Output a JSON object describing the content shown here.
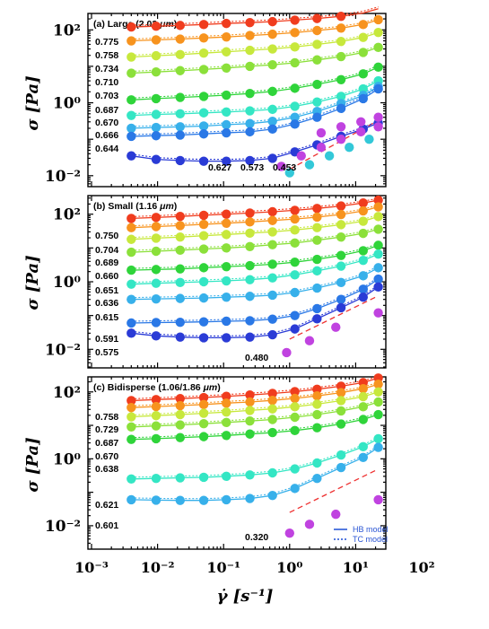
{
  "figure": {
    "ylabel": "σ [Pa]",
    "xlabel": "γ̇ [s⁻¹]"
  },
  "colors": {
    "0.775": "#f03c1e",
    "0.758": "#f7931e",
    "0.734": "#c7e83c",
    "0.710": "#8be03a",
    "0.703": "#2fd43a",
    "0.687": "#34e6c4",
    "0.670": "#37b0ea",
    "0.666": "#2a78e6",
    "0.644": "#2a3bd6",
    "0.627": "#c043e0",
    "0.573": "#33c8d8",
    "0.453": "#c043e0",
    "fit_line": "#1d4fd6",
    "slope_line": "#ee3030"
  },
  "chart_data": [
    {
      "type": "scatter",
      "panel": "a",
      "title": "(a) Large (2.03 ",
      "title_unit": "μm",
      "title_close": ")",
      "xlim": [
        0.001,
        100
      ],
      "ylim": [
        0.005,
        400
      ],
      "xscale": "log",
      "yscale": "log",
      "x_ticks": [
        "10⁻³",
        "10⁻²",
        "10⁻¹",
        "10⁰",
        "10¹",
        "10²"
      ],
      "y_ticks": [
        "10⁻²",
        "10⁰",
        "10²"
      ],
      "x": [
        0.004,
        0.0095,
        0.022,
        0.05,
        0.11,
        0.25,
        0.55,
        1.2,
        2.6,
        6.0,
        13.0,
        22.0
      ],
      "series": [
        {
          "name": "0.775",
          "color": "#f03c1e",
          "fit": true,
          "values": [
            120,
            126,
            132,
            140,
            150,
            158,
            168,
            185,
            205,
            235,
            290,
            380
          ]
        },
        {
          "name": "0.758",
          "color": "#f7931e",
          "fit": true,
          "values": [
            50,
            53,
            56,
            60,
            64,
            70,
            76,
            84,
            96,
            112,
            140,
            190
          ]
        },
        {
          "name": "0.734",
          "color": "#c7e83c",
          "fit": true,
          "values": [
            18,
            19.5,
            21,
            23,
            25,
            27.5,
            30,
            34,
            40,
            48,
            62,
            85
          ]
        },
        {
          "name": "0.710",
          "color": "#8be03a",
          "fit": true,
          "values": [
            6.5,
            7,
            7.6,
            8.2,
            9,
            10,
            11,
            12.5,
            15,
            18.5,
            24,
            33
          ]
        },
        {
          "name": "0.703",
          "color": "#2fd43a",
          "fit": true,
          "values": [
            1.2,
            1.3,
            1.4,
            1.5,
            1.62,
            1.8,
            2.05,
            2.5,
            3.2,
            4.3,
            6.2,
            9.5
          ]
        },
        {
          "name": "0.687",
          "color": "#34e6c4",
          "fit": true,
          "values": [
            0.45,
            0.48,
            0.5,
            0.53,
            0.56,
            0.6,
            0.66,
            0.8,
            1.05,
            1.5,
            2.4,
            4.0
          ]
        },
        {
          "name": "0.670",
          "color": "#37b0ea",
          "fit": true,
          "values": [
            0.2,
            0.21,
            0.22,
            0.23,
            0.25,
            0.27,
            0.31,
            0.4,
            0.58,
            0.95,
            1.6,
            2.8
          ]
        },
        {
          "name": "0.666",
          "color": "#2a78e6",
          "fit": true,
          "values": [
            0.12,
            0.125,
            0.13,
            0.14,
            0.15,
            0.16,
            0.19,
            0.26,
            0.4,
            0.7,
            1.3,
            2.4
          ]
        },
        {
          "name": "0.644",
          "color": "#2a3bd6",
          "fit": true,
          "values": [
            0.035,
            0.028,
            0.026,
            0.025,
            0.025,
            0.026,
            0.03,
            0.045,
            0.07,
            0.12,
            0.19,
            0.28
          ]
        },
        {
          "name": "0.627",
          "color": "#c043e0",
          "fit": false,
          "x": [
            0.75,
            1.5,
            3.0,
            6.0,
            12.0,
            22.0
          ],
          "values": [
            0.018,
            0.035,
            0.06,
            0.1,
            0.16,
            0.22
          ]
        },
        {
          "name": "0.573",
          "color": "#33c8d8",
          "fit": false,
          "x": [
            1.0,
            2.0,
            4.0,
            8.0,
            16.0
          ],
          "values": [
            0.012,
            0.02,
            0.035,
            0.06,
            0.1
          ]
        },
        {
          "name": "0.453",
          "color": "#c043e0",
          "fit": false,
          "x": [
            3.0,
            6.0,
            12.0,
            22.0
          ],
          "values": [
            0.15,
            0.22,
            0.3,
            0.4
          ]
        }
      ],
      "slope_line": {
        "x": [
          1.0,
          20.0
        ],
        "y": [
          0.015,
          0.3
        ]
      },
      "bottom_labels": [
        "0.627",
        "0.573",
        "0.453"
      ]
    },
    {
      "type": "scatter",
      "panel": "b",
      "title": "(b) Small (1.16 ",
      "title_unit": "μm",
      "title_close": ")",
      "xlim": [
        0.001,
        100
      ],
      "ylim": [
        0.0015,
        400
      ],
      "xscale": "log",
      "yscale": "log",
      "x": [
        0.004,
        0.0095,
        0.022,
        0.05,
        0.11,
        0.25,
        0.55,
        1.2,
        2.6,
        6.0,
        13.0,
        22.0
      ],
      "series": [
        {
          "name": "0.750",
          "color": "#f03c1e",
          "fit": true,
          "values": [
            75,
            80,
            86,
            93,
            100,
            108,
            118,
            130,
            148,
            175,
            215,
            260
          ]
        },
        {
          "name": "0.704",
          "color": "#f7931e",
          "fit": true,
          "values": [
            40,
            43,
            46,
            50,
            54,
            59,
            65,
            72,
            82,
            98,
            125,
            165
          ]
        },
        {
          "name": "0.689",
          "color": "#c7e83c",
          "fit": true,
          "values": [
            18,
            19.5,
            21,
            23,
            25,
            27.5,
            30,
            34,
            40,
            49,
            62,
            85
          ]
        },
        {
          "name": "0.660",
          "color": "#8be03a",
          "fit": true,
          "values": [
            7.5,
            8,
            8.6,
            9.3,
            10,
            11,
            12.5,
            14,
            17,
            21,
            27,
            36
          ]
        },
        {
          "name": "0.651",
          "color": "#2fd43a",
          "fit": true,
          "values": [
            2.2,
            2.3,
            2.4,
            2.6,
            2.8,
            3.0,
            3.3,
            3.8,
            4.6,
            6.0,
            8.3,
            12
          ]
        },
        {
          "name": "0.636",
          "color": "#34e6c4",
          "fit": true,
          "values": [
            0.85,
            0.9,
            0.95,
            1.0,
            1.06,
            1.15,
            1.3,
            1.6,
            2.1,
            2.9,
            4.3,
            6.6
          ]
        },
        {
          "name": "0.615",
          "color": "#37b0ea",
          "fit": true,
          "values": [
            0.3,
            0.31,
            0.32,
            0.33,
            0.35,
            0.37,
            0.4,
            0.48,
            0.65,
            0.95,
            1.5,
            2.6
          ]
        },
        {
          "name": "0.591",
          "color": "#2a78e6",
          "fit": true,
          "values": [
            0.06,
            0.062,
            0.063,
            0.065,
            0.068,
            0.07,
            0.078,
            0.1,
            0.16,
            0.3,
            0.6,
            1.2
          ]
        },
        {
          "name": "0.575",
          "color": "#2a3bd6",
          "fit": true,
          "values": [
            0.03,
            0.025,
            0.023,
            0.022,
            0.022,
            0.023,
            0.027,
            0.04,
            0.08,
            0.17,
            0.35,
            0.7
          ]
        },
        {
          "name": "0.480",
          "color": "#c043e0",
          "fit": false,
          "x": [
            0.9,
            2.0,
            5.0,
            22.0
          ],
          "values": [
            0.008,
            0.018,
            0.045,
            0.12
          ]
        }
      ],
      "slope_line": {
        "x": [
          1.0,
          20.0
        ],
        "y": [
          0.02,
          0.35
        ]
      },
      "bottom_labels": [
        "0.480"
      ]
    },
    {
      "type": "scatter",
      "panel": "c",
      "title": "(c) Bidisperse (1.06/1.86 ",
      "title_unit": "μm",
      "title_close": ")",
      "xlim": [
        0.001,
        100
      ],
      "ylim": [
        0.0015,
        400
      ],
      "xscale": "log",
      "yscale": "log",
      "x": [
        0.004,
        0.0095,
        0.022,
        0.05,
        0.11,
        0.25,
        0.55,
        1.2,
        2.6,
        6.0,
        13.0,
        22.0
      ],
      "series": [
        {
          "name": "0.758",
          "color": "#f03c1e",
          "fit": true,
          "values": [
            55,
            59,
            63,
            68,
            74,
            81,
            90,
            102,
            120,
            148,
            190,
            260
          ]
        },
        {
          "name": "0.729",
          "color": "#f7931e",
          "fit": true,
          "values": [
            34,
            36.5,
            39,
            42,
            46,
            50,
            56,
            64,
            76,
            95,
            125,
            170
          ]
        },
        {
          "name": "0.687",
          "color": "#c7e83c",
          "fit": true,
          "values": [
            18,
            19.5,
            21,
            23,
            25,
            28,
            31,
            36,
            43,
            55,
            72,
            100
          ]
        },
        {
          "name": "0.670",
          "color": "#8be03a",
          "fit": true,
          "values": [
            9,
            9.6,
            10.3,
            11.2,
            12.2,
            13.5,
            15,
            17.5,
            21,
            27,
            36,
            50
          ]
        },
        {
          "name": "0.638",
          "color": "#2fd43a",
          "fit": true,
          "values": [
            3.8,
            4.0,
            4.3,
            4.6,
            5.0,
            5.5,
            6.1,
            7.0,
            8.5,
            11,
            15,
            21
          ]
        },
        {
          "name": "0.621",
          "color": "#34e6c4",
          "fit": true,
          "values": [
            0.25,
            0.26,
            0.27,
            0.28,
            0.3,
            0.33,
            0.38,
            0.5,
            0.75,
            1.3,
            2.3,
            4.0
          ]
        },
        {
          "name": "0.601",
          "color": "#37b0ea",
          "fit": true,
          "values": [
            0.06,
            0.058,
            0.057,
            0.057,
            0.06,
            0.065,
            0.08,
            0.13,
            0.26,
            0.55,
            1.1,
            2.2
          ]
        },
        {
          "name": "0.320",
          "color": "#c043e0",
          "fit": false,
          "x": [
            1.0,
            2.0,
            5.0,
            22.0
          ],
          "values": [
            0.006,
            0.011,
            0.022,
            0.06
          ]
        }
      ],
      "slope_line": {
        "x": [
          1.0,
          20.0
        ],
        "y": [
          0.025,
          0.45
        ]
      },
      "bottom_labels": [
        "0.320"
      ],
      "legend": [
        {
          "label": "HB model",
          "style": "solid"
        },
        {
          "label": "TC model",
          "style": "dotted"
        }
      ]
    }
  ]
}
